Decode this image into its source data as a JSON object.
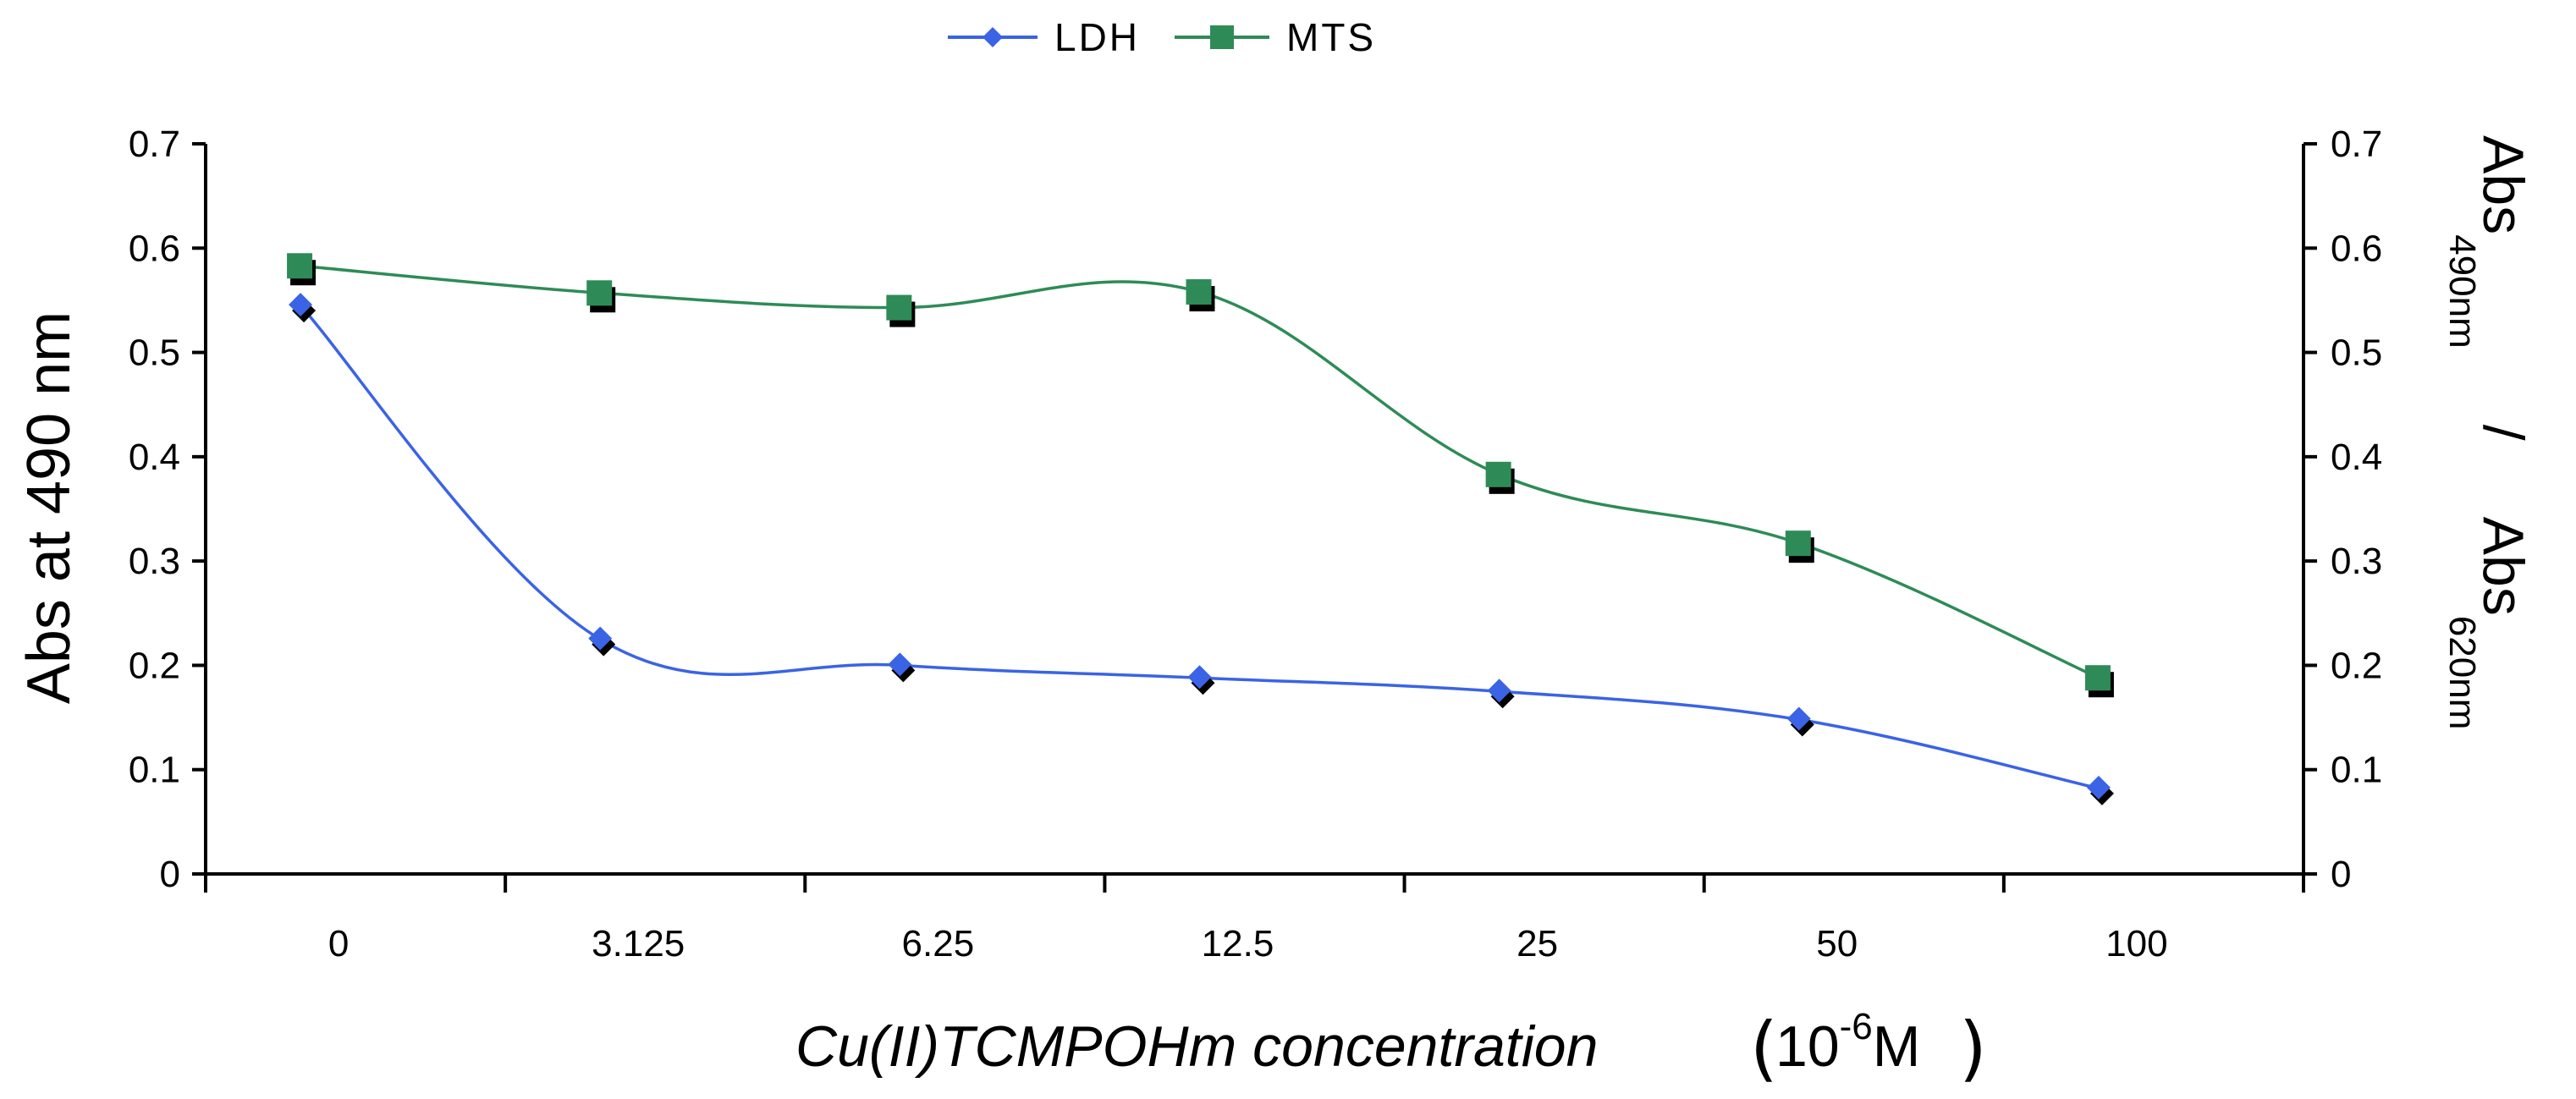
{
  "chart_data": {
    "type": "line",
    "categories": [
      "0",
      "3.125",
      "6.25",
      "12.5",
      "25",
      "50",
      "100"
    ],
    "series": [
      {
        "name": "LDH",
        "color": "#3a63e6",
        "marker": "diamond",
        "values": [
          0.545,
          0.225,
          0.2,
          0.188,
          0.175,
          0.148,
          0.082
        ]
      },
      {
        "name": "MTS",
        "color": "#2e8b57",
        "marker": "square",
        "values": [
          0.583,
          0.557,
          0.543,
          0.558,
          0.383,
          0.317,
          0.188
        ]
      }
    ],
    "ylim": [
      0,
      0.7
    ],
    "y_ticks": [
      "0",
      "0.1",
      "0.2",
      "0.3",
      "0.4",
      "0.5",
      "0.6",
      "0.7"
    ],
    "ylabel": "Abs at 490 nm",
    "y2_ticks": [
      "0",
      "0.1",
      "0.2",
      "0.3",
      "0.4",
      "0.5",
      "0.6",
      "0.7"
    ],
    "y2label": {
      "num_base": "Abs",
      "num_sub": "490nm",
      "separator": "/",
      "den_base": "Abs",
      "den_sub": "620nm"
    },
    "xlabel": {
      "title": "Cu(II)TCMPOHm concentration",
      "open_paren": "(",
      "unit_base": "10",
      "unit_exp": "-6",
      "unit_suffix": "M",
      "close_paren": ")"
    },
    "legend_position": "top-center",
    "grid": false
  }
}
